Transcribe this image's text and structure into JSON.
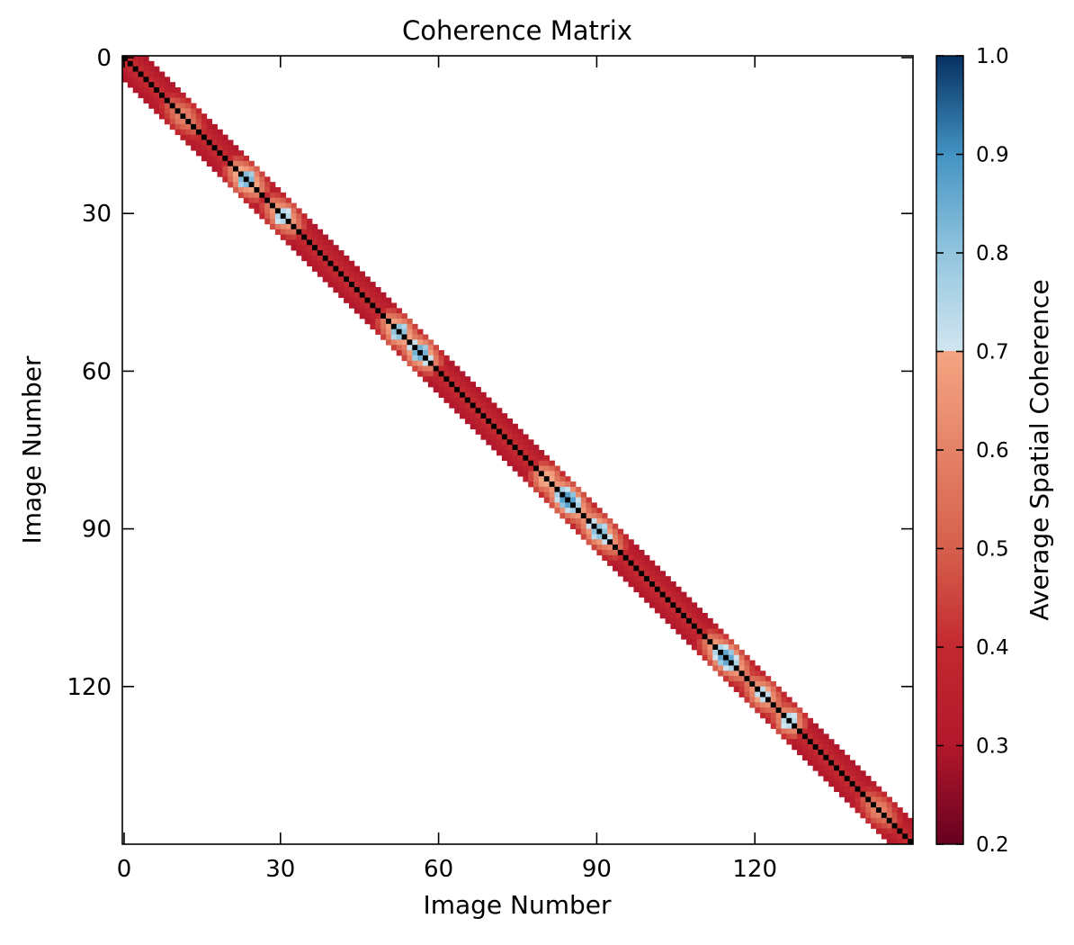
{
  "chart_data": {
    "type": "heatmap",
    "title": "Coherence Matrix",
    "xlabel": "Image Number",
    "ylabel": "Image Number",
    "size": 150,
    "xlim": [
      0,
      149
    ],
    "ylim": [
      149,
      0
    ],
    "x_ticks": [
      0,
      30,
      60,
      90,
      120
    ],
    "y_ticks": [
      0,
      30,
      60,
      90,
      120
    ],
    "diagonal_value": 1.0,
    "band_halfwidth": 4,
    "outside_band": "masked",
    "colorbar": {
      "label": "Average Spatial Coherence",
      "range": [
        0.2,
        1.0
      ],
      "ticks": [
        "0.2",
        "0.3",
        "0.4",
        "0.5",
        "0.6",
        "0.7",
        "0.8",
        "0.9",
        "1.0"
      ],
      "colormap": "RdBu",
      "colors": {
        "0.2": "#67001f",
        "0.3": "#b2182b",
        "0.4": "#c3292f",
        "0.5": "#d6604d",
        "0.6": "#e58268",
        "0.7": "#f4a582",
        "0.701": "#d1e5f0",
        "0.8": "#92c5de",
        "0.9": "#4393c3",
        "1.0": "#053061"
      }
    },
    "band_profile_by_offset": [
      1.0,
      0.4,
      0.36,
      0.33,
      0.3
    ],
    "high_coherence_regions": [
      {
        "center": 11,
        "peak": 0.62,
        "width": 3
      },
      {
        "center": 23,
        "peak": 0.88,
        "width": 3
      },
      {
        "center": 30,
        "peak": 0.8,
        "width": 3
      },
      {
        "center": 52,
        "peak": 0.86,
        "width": 3
      },
      {
        "center": 56,
        "peak": 0.9,
        "width": 3
      },
      {
        "center": 80,
        "peak": 0.76,
        "width": 2
      },
      {
        "center": 84,
        "peak": 0.93,
        "width": 4
      },
      {
        "center": 90,
        "peak": 0.85,
        "width": 4
      },
      {
        "center": 114,
        "peak": 0.91,
        "width": 4
      },
      {
        "center": 121,
        "peak": 0.78,
        "width": 3
      },
      {
        "center": 126,
        "peak": 0.8,
        "width": 2
      },
      {
        "center": 143,
        "peak": 0.62,
        "width": 3
      }
    ]
  }
}
